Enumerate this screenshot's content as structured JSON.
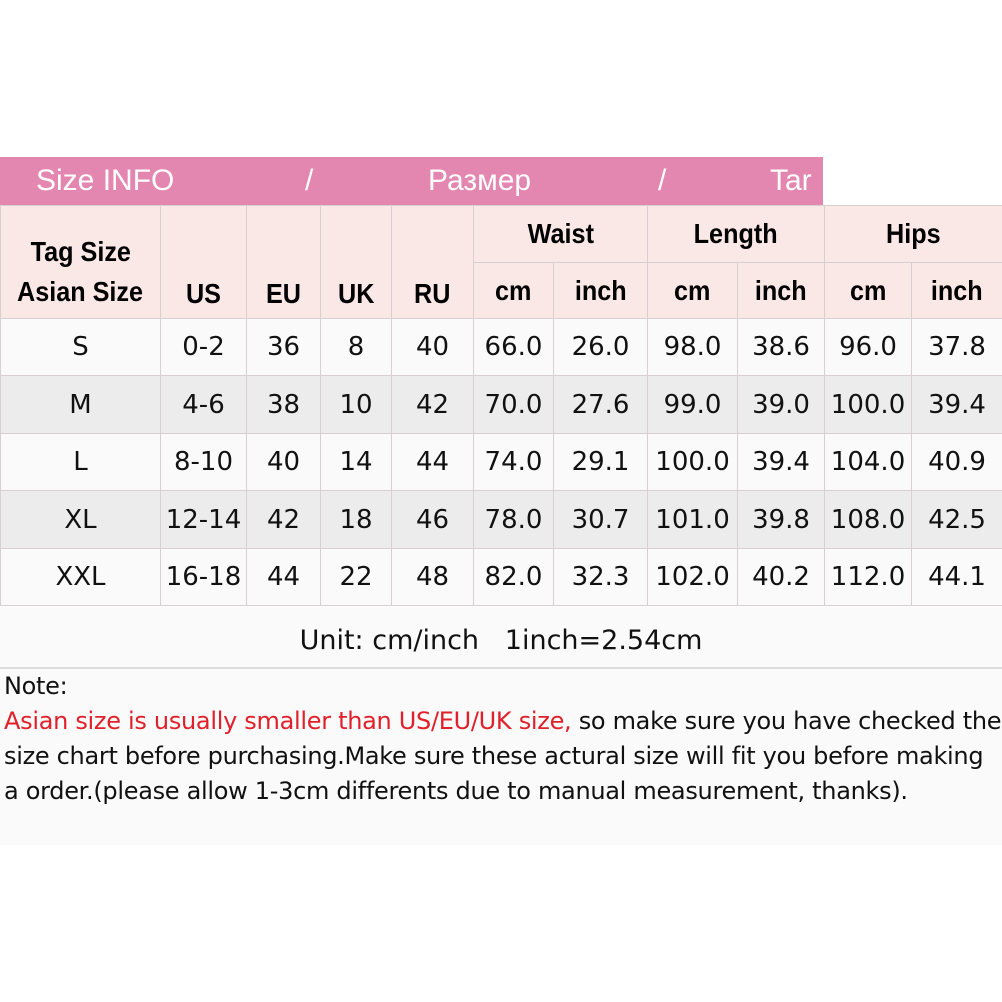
{
  "banner": {
    "part1": "Size INFO",
    "sep1": "/",
    "part2": "Размер",
    "sep2": "/",
    "part3": "Tar",
    "color": "#e487b0"
  },
  "header": {
    "tag_size": "Tag Size",
    "asian_size": "Asian Size",
    "us": "US",
    "eu": "EU",
    "uk": "UK",
    "ru": "RU",
    "waist": "Waist",
    "length": "Length",
    "hips": "Hips",
    "cm": "cm",
    "inch": "inch"
  },
  "rows": [
    [
      "S",
      "0-2",
      "36",
      "8",
      "40",
      "66.0",
      "26.0",
      "98.0",
      "38.6",
      "96.0",
      "37.8"
    ],
    [
      "M",
      "4-6",
      "38",
      "10",
      "42",
      "70.0",
      "27.6",
      "99.0",
      "39.0",
      "100.0",
      "39.4"
    ],
    [
      "L",
      "8-10",
      "40",
      "14",
      "44",
      "74.0",
      "29.1",
      "100.0",
      "39.4",
      "104.0",
      "40.9"
    ],
    [
      "XL",
      "12-14",
      "42",
      "18",
      "46",
      "78.0",
      "30.7",
      "101.0",
      "39.8",
      "108.0",
      "42.5"
    ],
    [
      "XXL",
      "16-18",
      "44",
      "22",
      "48",
      "82.0",
      "32.3",
      "102.0",
      "40.2",
      "112.0",
      "44.1"
    ]
  ],
  "unit": "Unit: cm/inch   1inch=2.54cm",
  "note": {
    "label": "Note:",
    "warning": "Asian size is usually smaller than US/EU/UK size,",
    "text": " so make sure you have checked the size chart before purchasing.Make sure these actural size will fit you before making a order.(please allow 1-3cm differents due to manual measurement, thanks).",
    "warning_color": "#e0202a"
  }
}
